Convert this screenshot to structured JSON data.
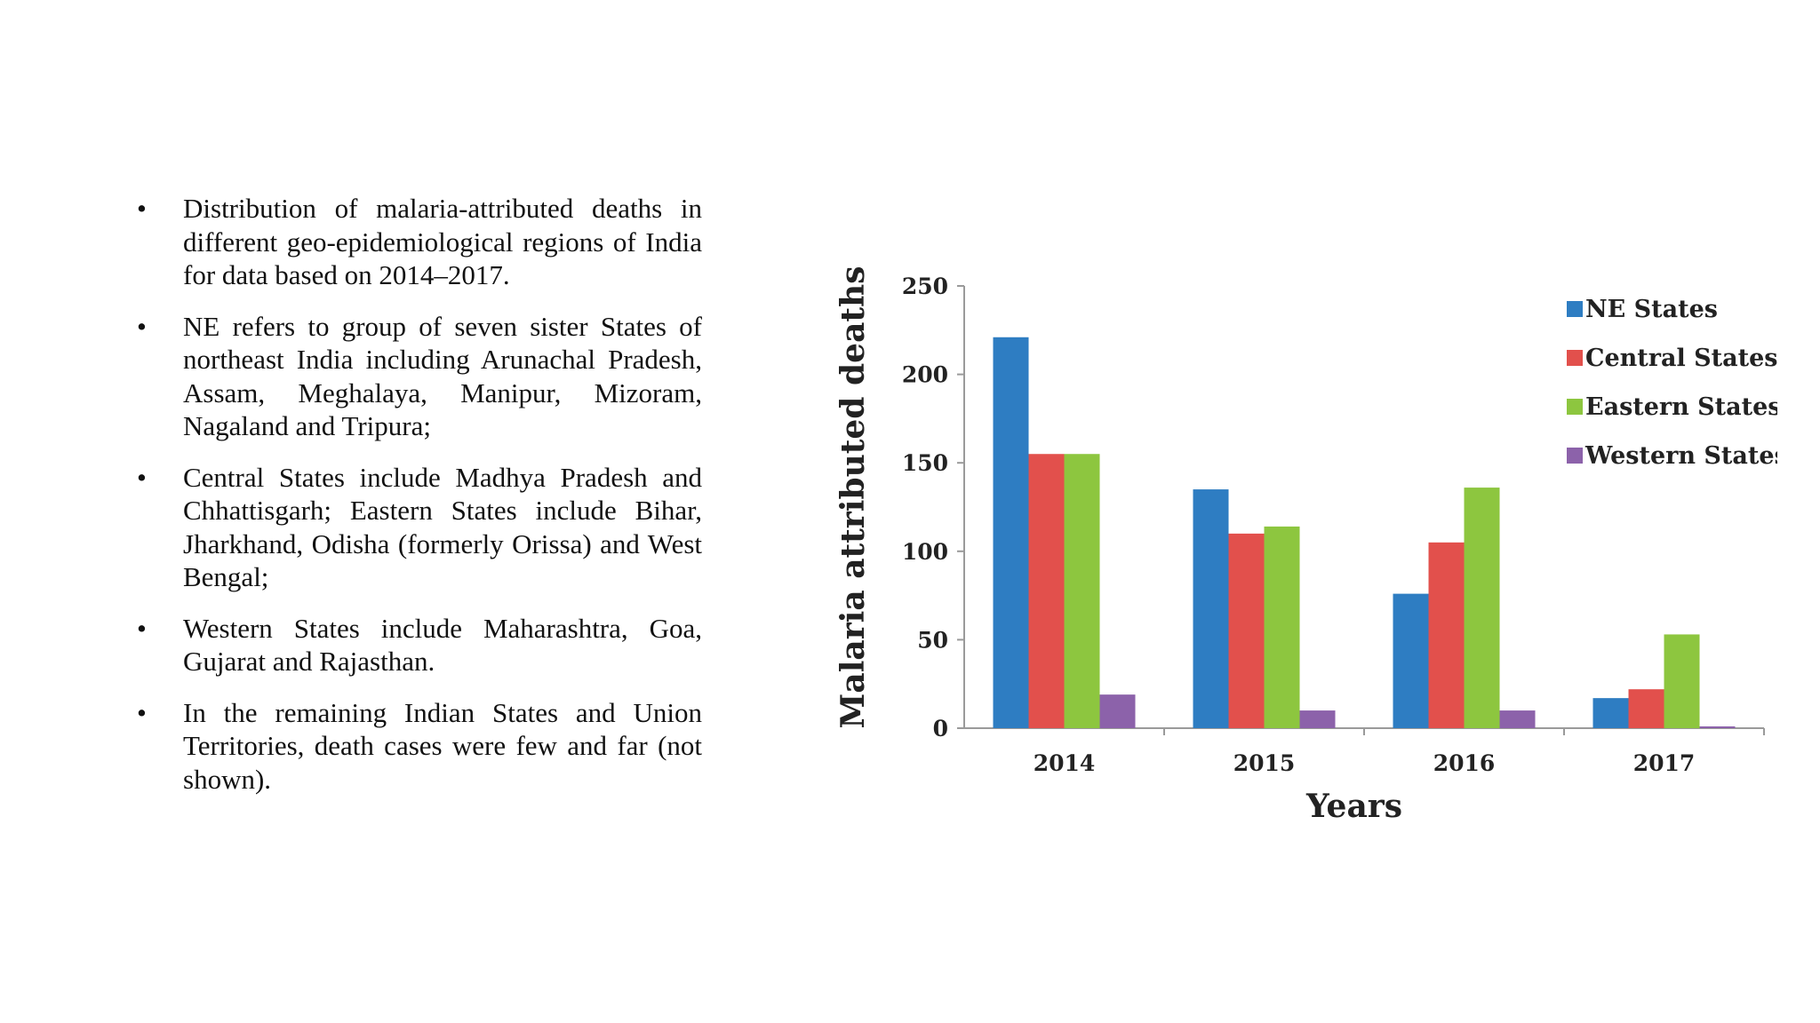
{
  "bullets": [
    "Distribution of malaria-attributed deaths in different geo-epidemiological regions of India for data based on 2014–2017.",
    "NE refers to group of seven sister States of northeast India including Arunachal Pradesh, Assam, Meghalaya, Manipur, Mizoram, Nagaland and Tripura;",
    "Central States include Madhya Pradesh and Chhattisgarh; Eastern States include Bihar, Jharkhand, Odisha (formerly Orissa) and West Bengal;",
    "Western States include Maharashtra, Goa, Gujarat and Rajasthan.",
    " In the remaining Indian States and Union Territories, death cases were few and far (not shown)."
  ],
  "bullet_glyph": "•",
  "chart_data": {
    "type": "bar",
    "title": "",
    "xlabel": "Years",
    "ylabel": "Malaria attributed deaths",
    "categories": [
      "2014",
      "2015",
      "2016",
      "2017"
    ],
    "ylim": [
      0,
      250
    ],
    "yticks": [
      0,
      50,
      100,
      150,
      200,
      250
    ],
    "grid": false,
    "legend_position": "top-right",
    "series": [
      {
        "name": "NE States",
        "color": "#2e7dc2",
        "values": [
          221,
          135,
          76,
          17
        ]
      },
      {
        "name": "Central States",
        "color": "#e2504c",
        "values": [
          155,
          110,
          105,
          22
        ]
      },
      {
        "name": "Eastern States",
        "color": "#8dc63f",
        "values": [
          155,
          114,
          136,
          53
        ]
      },
      {
        "name": "Western States",
        "color": "#8c62aa",
        "values": [
          19,
          10,
          10,
          1
        ]
      }
    ]
  }
}
